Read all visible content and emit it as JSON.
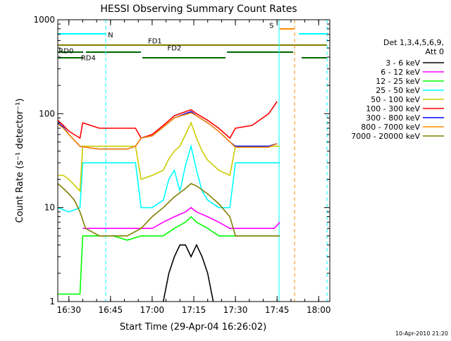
{
  "chart_data": {
    "type": "line",
    "title": "HESSI Observing Summary Count Rates",
    "xlabel": "Start Time (29-Apr-04 16:26:02)",
    "ylabel": "Count Rate (s⁻¹ detector⁻¹)",
    "footer": "10-Apr-2010 21:20",
    "x_unit": "minutes after 16:26:02",
    "xlim": [
      0,
      98
    ],
    "ylim": [
      1,
      1000
    ],
    "yscale": "log",
    "x_ticks": [
      {
        "label": "16:30",
        "value": 4
      },
      {
        "label": "16:45",
        "value": 19
      },
      {
        "label": "17:00",
        "value": 34
      },
      {
        "label": "17:15",
        "value": 49
      },
      {
        "label": "17:30",
        "value": 64
      },
      {
        "label": "17:45",
        "value": 79
      },
      {
        "label": "18:00",
        "value": 94
      }
    ],
    "y_ticks": [
      {
        "label": "1",
        "value": 1
      },
      {
        "label": "10",
        "value": 10
      },
      {
        "label": "100",
        "value": 100
      },
      {
        "label": "1000",
        "value": 1000
      }
    ],
    "legend": {
      "position": "right",
      "header": [
        "Det 1,3,4,5,6,9,",
        "Att 0"
      ]
    },
    "series": [
      {
        "name": "3 - 6 keV",
        "color": "#000000",
        "points": [
          [
            38,
            1
          ],
          [
            40,
            2
          ],
          [
            42,
            3
          ],
          [
            44,
            4
          ],
          [
            46,
            4
          ],
          [
            48,
            3
          ],
          [
            50,
            4
          ],
          [
            52,
            3
          ],
          [
            54,
            2
          ],
          [
            56,
            1
          ]
        ]
      },
      {
        "name": "6 - 12 keV",
        "color": "#ff00ff",
        "points": [
          [
            9,
            6
          ],
          [
            15,
            6
          ],
          [
            20,
            6
          ],
          [
            25,
            6
          ],
          [
            30,
            6
          ],
          [
            34,
            6
          ],
          [
            38,
            7
          ],
          [
            42,
            8
          ],
          [
            46,
            9
          ],
          [
            48,
            10
          ],
          [
            50,
            9
          ],
          [
            54,
            8
          ],
          [
            58,
            7
          ],
          [
            62,
            6
          ],
          [
            66,
            6
          ],
          [
            72,
            6
          ],
          [
            78,
            6
          ],
          [
            80,
            7
          ]
        ]
      },
      {
        "name": "12 - 25 keV",
        "color": "#00ff00",
        "points": [
          [
            0,
            1.2
          ],
          [
            8,
            1.2
          ],
          [
            9,
            5
          ],
          [
            15,
            5
          ],
          [
            20,
            5
          ],
          [
            25,
            4.5
          ],
          [
            30,
            5
          ],
          [
            34,
            5
          ],
          [
            38,
            5
          ],
          [
            42,
            6
          ],
          [
            46,
            7
          ],
          [
            48,
            8
          ],
          [
            50,
            7
          ],
          [
            54,
            6
          ],
          [
            58,
            5
          ],
          [
            62,
            5
          ],
          [
            66,
            5
          ],
          [
            70,
            5
          ],
          [
            74,
            5
          ],
          [
            78,
            5
          ],
          [
            80,
            5
          ]
        ]
      },
      {
        "name": "25 - 50 keV",
        "color": "#00ffff",
        "points": [
          [
            0,
            10
          ],
          [
            4,
            9
          ],
          [
            8,
            10
          ],
          [
            9,
            30
          ],
          [
            15,
            30
          ],
          [
            20,
            30
          ],
          [
            25,
            30
          ],
          [
            28,
            30
          ],
          [
            30,
            10
          ],
          [
            34,
            10
          ],
          [
            38,
            12
          ],
          [
            40,
            20
          ],
          [
            42,
            25
          ],
          [
            44,
            15
          ],
          [
            46,
            28
          ],
          [
            48,
            45
          ],
          [
            50,
            25
          ],
          [
            52,
            15
          ],
          [
            54,
            12
          ],
          [
            58,
            10
          ],
          [
            62,
            10
          ],
          [
            64,
            30
          ],
          [
            70,
            30
          ],
          [
            78,
            30
          ],
          [
            80,
            30
          ]
        ]
      },
      {
        "name": "50 - 100 keV",
        "color": "#cccc00",
        "points": [
          [
            0,
            22
          ],
          [
            2,
            22
          ],
          [
            4,
            20
          ],
          [
            8,
            15
          ],
          [
            9,
            45
          ],
          [
            15,
            45
          ],
          [
            20,
            45
          ],
          [
            25,
            45
          ],
          [
            28,
            45
          ],
          [
            30,
            20
          ],
          [
            34,
            22
          ],
          [
            38,
            25
          ],
          [
            40,
            33
          ],
          [
            42,
            40
          ],
          [
            44,
            45
          ],
          [
            46,
            60
          ],
          [
            48,
            80
          ],
          [
            50,
            55
          ],
          [
            52,
            40
          ],
          [
            54,
            32
          ],
          [
            58,
            25
          ],
          [
            62,
            22
          ],
          [
            64,
            45
          ],
          [
            70,
            45
          ],
          [
            78,
            45
          ],
          [
            80,
            45
          ]
        ]
      },
      {
        "name": "100 - 300 keV",
        "color": "#ff0000",
        "points": [
          [
            0,
            85
          ],
          [
            2,
            75
          ],
          [
            4,
            65
          ],
          [
            8,
            55
          ],
          [
            9,
            80
          ],
          [
            15,
            70
          ],
          [
            20,
            70
          ],
          [
            25,
            70
          ],
          [
            28,
            70
          ],
          [
            30,
            55
          ],
          [
            34,
            60
          ],
          [
            38,
            75
          ],
          [
            42,
            95
          ],
          [
            46,
            105
          ],
          [
            48,
            110
          ],
          [
            50,
            100
          ],
          [
            54,
            85
          ],
          [
            58,
            70
          ],
          [
            62,
            55
          ],
          [
            64,
            70
          ],
          [
            70,
            75
          ],
          [
            76,
            100
          ],
          [
            79,
            135
          ]
        ]
      },
      {
        "name": "300 - 800 keV",
        "color": "#0000ff",
        "points": [
          [
            0,
            80
          ],
          [
            2,
            72
          ],
          [
            4,
            60
          ],
          [
            8,
            45
          ],
          [
            12,
            43
          ],
          [
            15,
            42
          ],
          [
            20,
            42
          ],
          [
            25,
            42
          ],
          [
            28,
            45
          ],
          [
            30,
            55
          ],
          [
            34,
            58
          ],
          [
            38,
            72
          ],
          [
            42,
            90
          ],
          [
            46,
            100
          ],
          [
            48,
            105
          ],
          [
            50,
            95
          ],
          [
            54,
            80
          ],
          [
            58,
            65
          ],
          [
            62,
            50
          ],
          [
            64,
            45
          ],
          [
            70,
            45
          ],
          [
            76,
            45
          ],
          [
            79,
            48
          ]
        ]
      },
      {
        "name": "800 - 7000 keV",
        "color": "#ff8c00",
        "points": [
          [
            0,
            78
          ],
          [
            2,
            70
          ],
          [
            4,
            60
          ],
          [
            8,
            45
          ],
          [
            12,
            43
          ],
          [
            15,
            42
          ],
          [
            20,
            42
          ],
          [
            25,
            42
          ],
          [
            28,
            45
          ],
          [
            30,
            55
          ],
          [
            34,
            58
          ],
          [
            38,
            72
          ],
          [
            42,
            90
          ],
          [
            46,
            98
          ],
          [
            48,
            102
          ],
          [
            50,
            95
          ],
          [
            54,
            80
          ],
          [
            58,
            65
          ],
          [
            62,
            50
          ],
          [
            64,
            44
          ],
          [
            70,
            44
          ],
          [
            76,
            44
          ],
          [
            79,
            48
          ]
        ]
      },
      {
        "name": "7000 - 20000 keV",
        "color": "#808000",
        "points": [
          [
            0,
            18
          ],
          [
            2,
            16
          ],
          [
            4,
            14
          ],
          [
            6,
            12
          ],
          [
            8,
            9
          ],
          [
            10,
            6
          ],
          [
            15,
            5
          ],
          [
            20,
            5
          ],
          [
            25,
            5
          ],
          [
            30,
            6
          ],
          [
            34,
            8
          ],
          [
            38,
            10
          ],
          [
            42,
            13
          ],
          [
            46,
            16
          ],
          [
            48,
            18
          ],
          [
            50,
            17
          ],
          [
            54,
            14
          ],
          [
            58,
            11
          ],
          [
            62,
            8
          ],
          [
            64,
            5
          ],
          [
            70,
            5
          ],
          [
            78,
            5
          ],
          [
            80,
            5
          ]
        ]
      }
    ],
    "annotations": [
      {
        "text": "N",
        "x": 19,
        "y": 650,
        "color": "#00ffff"
      },
      {
        "text": "FD1",
        "x": 35,
        "y": 560,
        "color": "#808000"
      },
      {
        "text": "FD2",
        "x": 42,
        "y": 470,
        "color": "#808000"
      },
      {
        "text": "S",
        "x": 77,
        "y": 820,
        "color": "#ff8c00"
      },
      {
        "text": "RD0",
        "x": 3,
        "y": 440,
        "color": "#006400"
      },
      {
        "text": "RD4",
        "x": 11,
        "y": 370,
        "color": "#006400"
      }
    ]
  }
}
